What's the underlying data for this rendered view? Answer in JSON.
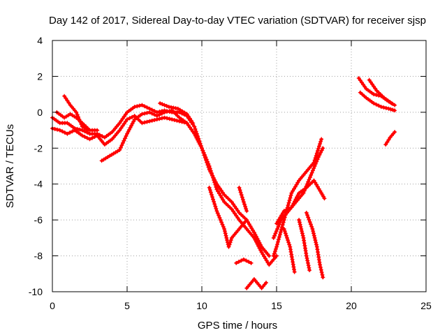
{
  "chart_data": {
    "type": "scatter",
    "title": "Day 142 of 2017, Sidereal Day-to-day VTEC variation (SDTVAR) for receiver sjsp",
    "xlabel": "GPS time / hours",
    "ylabel": "SDTVAR / TECUs",
    "xlim": [
      0,
      25
    ],
    "ylim": [
      -10,
      4
    ],
    "x_ticks": [
      0,
      5,
      10,
      15,
      20,
      25
    ],
    "y_ticks": [
      -10,
      -8,
      -6,
      -4,
      -2,
      0,
      2,
      4
    ],
    "grid": true,
    "marker": "plus",
    "series_color": "#ff0000",
    "segments": [
      [
        [
          0.0,
          -0.9
        ],
        [
          0.5,
          -1.0
        ],
        [
          1.0,
          -1.2
        ],
        [
          1.5,
          -1.0
        ],
        [
          2.0,
          -1.3
        ],
        [
          2.5,
          -1.5
        ],
        [
          3.0,
          -1.3
        ],
        [
          3.5,
          -1.8
        ],
        [
          4.0,
          -1.5
        ],
        [
          4.5,
          -1.0
        ],
        [
          5.0,
          -0.4
        ],
        [
          5.5,
          -0.2
        ],
        [
          6.0,
          -0.6
        ],
        [
          6.5,
          -0.5
        ],
        [
          7.0,
          -0.4
        ],
        [
          7.5,
          -0.3
        ],
        [
          8.0,
          -0.4
        ],
        [
          8.5,
          -0.5
        ],
        [
          9.0,
          -0.6
        ],
        [
          9.5,
          -1.2
        ],
        [
          10.0,
          -2.0
        ],
        [
          10.5,
          -3.0
        ],
        [
          11.0,
          -4.3
        ],
        [
          11.5,
          -5.0
        ],
        [
          12.0,
          -5.4
        ],
        [
          12.5,
          -6.0
        ],
        [
          13.0,
          -6.5
        ],
        [
          13.5,
          -7.0
        ],
        [
          14.0,
          -7.8
        ],
        [
          14.5,
          -8.5
        ],
        [
          15.0,
          -8.0
        ]
      ],
      [
        [
          0.0,
          -0.3
        ],
        [
          0.5,
          -0.6
        ],
        [
          1.0,
          -0.6
        ],
        [
          1.5,
          -0.9
        ],
        [
          2.0,
          -1.0
        ],
        [
          2.5,
          -1.2
        ],
        [
          3.0,
          -1.2
        ],
        [
          3.5,
          -1.4
        ],
        [
          4.0,
          -1.1
        ],
        [
          4.5,
          -0.6
        ],
        [
          5.0,
          0.0
        ],
        [
          5.5,
          0.3
        ],
        [
          6.0,
          0.4
        ],
        [
          6.5,
          0.2
        ],
        [
          7.0,
          0.0
        ],
        [
          7.5,
          0.1
        ],
        [
          8.0,
          0.0
        ],
        [
          8.5,
          0.0
        ],
        [
          9.0,
          -0.2
        ],
        [
          9.5,
          -0.8
        ],
        [
          10.0,
          -2.0
        ],
        [
          10.5,
          -3.2
        ],
        [
          11.0,
          -4.0
        ],
        [
          11.5,
          -4.6
        ],
        [
          12.0,
          -5.0
        ],
        [
          12.5,
          -5.6
        ],
        [
          13.0,
          -6.0
        ],
        [
          13.5,
          -6.7
        ],
        [
          14.0,
          -7.5
        ],
        [
          14.5,
          -8.0
        ]
      ],
      [
        [
          0.3,
          0.0
        ],
        [
          0.8,
          -0.3
        ],
        [
          1.2,
          -0.1
        ],
        [
          1.6,
          -0.3
        ],
        [
          2.0,
          -0.6
        ],
        [
          2.5,
          -1.0
        ],
        [
          3.0,
          -1.0
        ]
      ],
      [
        [
          0.8,
          0.9
        ],
        [
          1.2,
          0.4
        ],
        [
          1.6,
          0.0
        ],
        [
          2.0,
          -0.8
        ],
        [
          2.4,
          -1.0
        ]
      ],
      [
        [
          3.3,
          -2.7
        ],
        [
          3.7,
          -2.5
        ],
        [
          4.1,
          -2.3
        ],
        [
          4.5,
          -2.1
        ],
        [
          5.0,
          -1.2
        ],
        [
          5.5,
          -0.4
        ],
        [
          6.0,
          -0.1
        ],
        [
          6.5,
          0.0
        ],
        [
          7.0,
          -0.2
        ],
        [
          7.5,
          0.0
        ],
        [
          8.0,
          0.1
        ],
        [
          8.5,
          -0.3
        ],
        [
          9.0,
          -0.6
        ]
      ],
      [
        [
          7.2,
          0.5
        ],
        [
          7.8,
          0.3
        ],
        [
          8.4,
          0.2
        ],
        [
          9.0,
          -0.1
        ],
        [
          9.4,
          -0.6
        ]
      ],
      [
        [
          10.5,
          -4.2
        ],
        [
          11.0,
          -5.5
        ],
        [
          11.5,
          -6.5
        ],
        [
          11.8,
          -7.5
        ],
        [
          12.0,
          -7.0
        ],
        [
          12.5,
          -6.5
        ],
        [
          13.0,
          -6.0
        ]
      ],
      [
        [
          12.3,
          -8.4
        ],
        [
          12.8,
          -8.2
        ],
        [
          13.3,
          -8.4
        ]
      ],
      [
        [
          12.5,
          -4.2
        ],
        [
          12.8,
          -5.0
        ],
        [
          13.0,
          -5.5
        ]
      ],
      [
        [
          13.0,
          -9.8
        ],
        [
          13.5,
          -9.3
        ],
        [
          14.0,
          -9.8
        ],
        [
          14.3,
          -9.5
        ]
      ],
      [
        [
          14.8,
          -8.0
        ],
        [
          15.0,
          -7.5
        ],
        [
          15.5,
          -6.0
        ],
        [
          16.0,
          -4.5
        ],
        [
          16.5,
          -3.8
        ],
        [
          17.0,
          -3.3
        ],
        [
          17.5,
          -2.8
        ],
        [
          18.0,
          -1.5
        ]
      ],
      [
        [
          14.8,
          -7.0
        ],
        [
          15.3,
          -6.0
        ],
        [
          15.8,
          -5.5
        ],
        [
          16.3,
          -5.0
        ],
        [
          16.8,
          -4.5
        ],
        [
          17.3,
          -3.5
        ],
        [
          17.8,
          -2.5
        ],
        [
          18.1,
          -2.0
        ]
      ],
      [
        [
          15.0,
          -6.2
        ],
        [
          15.5,
          -5.5
        ],
        [
          16.0,
          -5.3
        ],
        [
          16.5,
          -4.5
        ],
        [
          17.0,
          -4.2
        ],
        [
          17.5,
          -3.8
        ],
        [
          18.0,
          -4.5
        ],
        [
          18.2,
          -4.8
        ]
      ],
      [
        [
          15.5,
          -6.5
        ],
        [
          15.9,
          -7.5
        ],
        [
          16.2,
          -8.9
        ]
      ],
      [
        [
          16.5,
          -6.0
        ],
        [
          16.8,
          -7.0
        ],
        [
          17.0,
          -8.0
        ],
        [
          17.2,
          -8.8
        ]
      ],
      [
        [
          17.0,
          -5.6
        ],
        [
          17.4,
          -6.5
        ],
        [
          17.7,
          -7.5
        ],
        [
          17.9,
          -8.5
        ],
        [
          18.1,
          -9.2
        ]
      ],
      [
        [
          20.5,
          1.9
        ],
        [
          21.0,
          1.3
        ],
        [
          21.5,
          1.0
        ],
        [
          22.0,
          0.9
        ],
        [
          22.5,
          0.6
        ],
        [
          22.9,
          0.4
        ]
      ],
      [
        [
          20.6,
          1.1
        ],
        [
          21.0,
          0.8
        ],
        [
          21.5,
          0.5
        ],
        [
          22.0,
          0.3
        ],
        [
          22.5,
          0.2
        ],
        [
          22.9,
          0.1
        ]
      ],
      [
        [
          21.2,
          1.8
        ],
        [
          21.7,
          1.2
        ],
        [
          22.2,
          0.8
        ],
        [
          22.7,
          0.5
        ]
      ],
      [
        [
          22.3,
          -1.8
        ],
        [
          22.6,
          -1.4
        ],
        [
          22.9,
          -1.1
        ]
      ]
    ]
  }
}
